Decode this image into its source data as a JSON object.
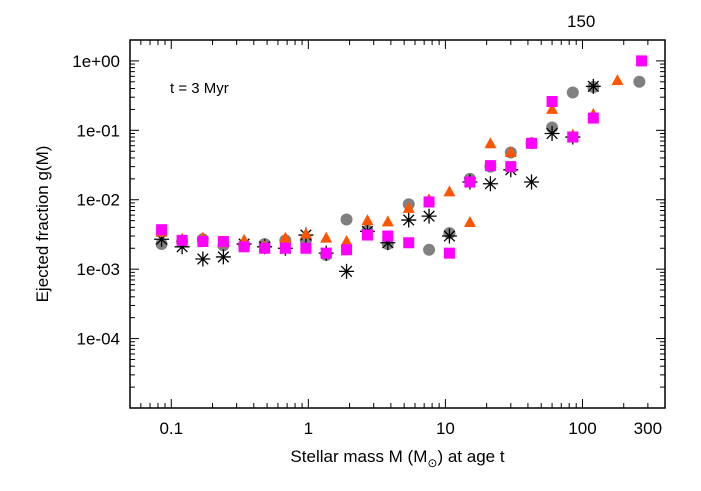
{
  "chart_data": {
    "type": "scatter",
    "title": "",
    "top_label": "150",
    "annotation": "t = 3 Myr",
    "xlabel_main": "Stellar mass M (M",
    "xlabel_sub": "⊙",
    "xlabel_tail": ") at age t",
    "ylabel": "Ejected fraction g(M)",
    "xscale": "log",
    "yscale": "log",
    "xlim": [
      0.05,
      400
    ],
    "ylim": [
      1e-05,
      2
    ],
    "xticks": [
      {
        "value": 0.1,
        "label": "0.1"
      },
      {
        "value": 1,
        "label": "1"
      },
      {
        "value": 10,
        "label": "10"
      },
      {
        "value": 100,
        "label": "100"
      },
      {
        "value": 300,
        "label": "300"
      }
    ],
    "yticks": [
      {
        "value": 1,
        "label": "1e+00"
      },
      {
        "value": 0.1,
        "label": "1e-01"
      },
      {
        "value": 0.01,
        "label": "1e-02"
      },
      {
        "value": 0.001,
        "label": "1e-03"
      },
      {
        "value": 0.0001,
        "label": "1e-04"
      }
    ],
    "series": [
      {
        "marker": "circle",
        "color": "#808080",
        "x": [
          0.085,
          0.12,
          0.17,
          0.24,
          0.34,
          0.48,
          0.68,
          0.96,
          1.35,
          1.9,
          2.7,
          3.8,
          5.4,
          7.6,
          10.7,
          15.1,
          21.3,
          30,
          42.5,
          60,
          85,
          120,
          260
        ],
        "y": [
          0.0023,
          0.0025,
          0.0027,
          0.0022,
          0.0022,
          0.0023,
          0.0026,
          0.0026,
          0.0016,
          0.0052,
          0.0036,
          0.0023,
          0.0086,
          0.0019,
          0.0033,
          0.02,
          0.03,
          0.048,
          0.065,
          0.11,
          0.35,
          0.42,
          0.5
        ]
      },
      {
        "marker": "star",
        "color": "#000000",
        "x": [
          0.085,
          0.12,
          0.17,
          0.24,
          0.34,
          0.48,
          0.68,
          0.96,
          1.35,
          1.9,
          2.7,
          3.8,
          5.4,
          7.6,
          10.7,
          15.1,
          21.3,
          30,
          42.5,
          60,
          85,
          120
        ],
        "y": [
          0.0027,
          0.0021,
          0.0014,
          0.0015,
          0.0023,
          0.0021,
          0.002,
          0.0031,
          0.0017,
          0.00093,
          0.0035,
          0.0024,
          0.0051,
          0.0058,
          0.003,
          0.018,
          0.017,
          0.027,
          0.018,
          0.09,
          0.08,
          0.43
        ]
      },
      {
        "marker": "triangle",
        "color": "#ff5500",
        "x": [
          0.085,
          0.12,
          0.17,
          0.24,
          0.34,
          0.48,
          0.68,
          0.96,
          1.35,
          1.9,
          2.7,
          3.8,
          5.4,
          7.6,
          10.7,
          15.1,
          21.3,
          30,
          42.5,
          60,
          85,
          120,
          180
        ],
        "y": [
          0.0034,
          0.0027,
          0.0028,
          0.0024,
          0.0026,
          0.0021,
          0.0028,
          0.0032,
          0.0028,
          0.0025,
          0.005,
          0.0048,
          0.0075,
          0.01,
          0.013,
          0.0047,
          0.064,
          0.048,
          0.066,
          0.2,
          0.085,
          0.17,
          0.52
        ]
      },
      {
        "marker": "square",
        "color": "#ff00ff",
        "x": [
          0.085,
          0.12,
          0.17,
          0.24,
          0.34,
          0.48,
          0.68,
          0.96,
          1.35,
          1.9,
          2.7,
          3.8,
          5.4,
          7.6,
          10.7,
          15.1,
          21.3,
          30,
          42.5,
          60,
          85,
          120,
          270
        ],
        "y": [
          0.0037,
          0.0026,
          0.0025,
          0.0025,
          0.0021,
          0.002,
          0.002,
          0.002,
          0.0017,
          0.0019,
          0.0031,
          0.003,
          0.0024,
          0.0093,
          0.0017,
          0.018,
          0.031,
          0.03,
          0.065,
          0.26,
          0.08,
          0.15,
          1.0
        ]
      }
    ]
  }
}
